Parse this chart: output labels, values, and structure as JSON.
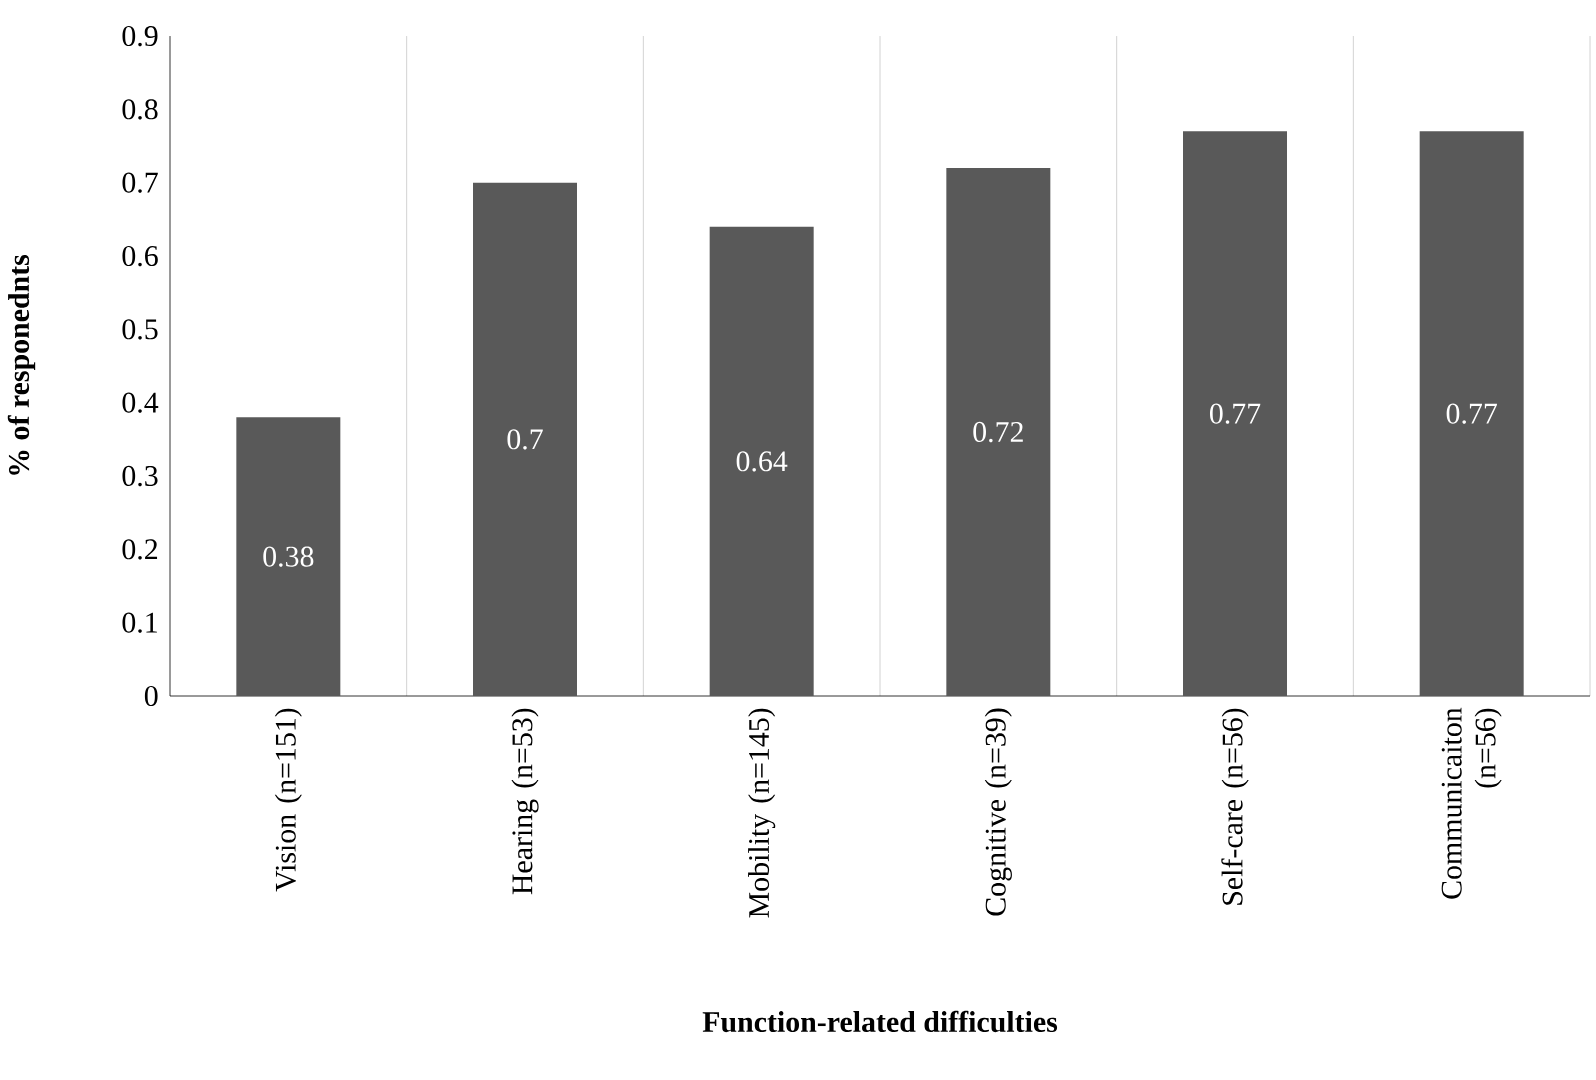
{
  "chart_data": {
    "type": "bar",
    "xlabel": "Function-related difficulties",
    "ylabel": "% of responednts",
    "categories": [
      "Vision (n=151)",
      "Hearing (n=53)",
      "Mobility (n=145)",
      "Cognitive (n=39)",
      "Self-care (n=56)",
      "Communicaiton (n=56)"
    ],
    "values": [
      0.38,
      0.7,
      0.64,
      0.72,
      0.77,
      0.77
    ],
    "color": "#595959",
    "ylim": [
      0,
      0.9
    ],
    "yticks": [
      0,
      0.1,
      0.2,
      0.3,
      0.4,
      0.5,
      0.6,
      0.7,
      0.8,
      0.9
    ],
    "grid": "x",
    "data_labels": true
  }
}
